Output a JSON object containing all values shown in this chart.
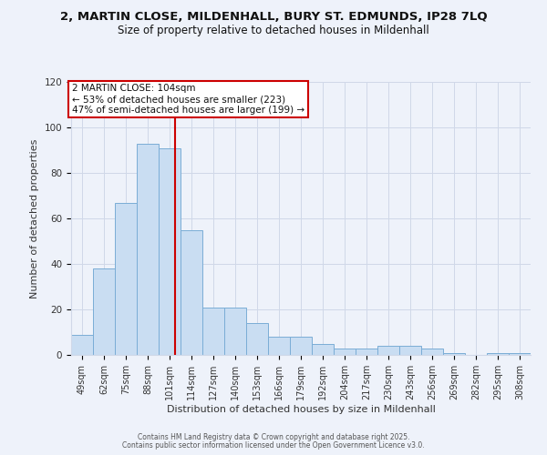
{
  "title_line1": "2, MARTIN CLOSE, MILDENHALL, BURY ST. EDMUNDS, IP28 7LQ",
  "title_line2": "Size of property relative to detached houses in Mildenhall",
  "xlabel": "Distribution of detached houses by size in Mildenhall",
  "ylabel": "Number of detached properties",
  "categories": [
    "49sqm",
    "62sqm",
    "75sqm",
    "88sqm",
    "101sqm",
    "114sqm",
    "127sqm",
    "140sqm",
    "153sqm",
    "166sqm",
    "179sqm",
    "192sqm",
    "204sqm",
    "217sqm",
    "230sqm",
    "243sqm",
    "256sqm",
    "269sqm",
    "282sqm",
    "295sqm",
    "308sqm"
  ],
  "values": [
    9,
    38,
    67,
    93,
    91,
    55,
    21,
    21,
    14,
    8,
    8,
    5,
    3,
    3,
    4,
    4,
    3,
    1,
    0,
    1,
    1
  ],
  "bar_color": "#c9ddf2",
  "bar_edge_color": "#7aadd6",
  "red_line_color": "#cc0000",
  "annotation_box_color": "#ffffff",
  "annotation_box_edge": "#cc0000",
  "annotation_line1": "2 MARTIN CLOSE: 104sqm",
  "annotation_line2": "← 53% of detached houses are smaller (223)",
  "annotation_line3": "47% of semi-detached houses are larger (199) →",
  "ylim": [
    0,
    120
  ],
  "yticks": [
    0,
    20,
    40,
    60,
    80,
    100,
    120
  ],
  "footer_line1": "Contains HM Land Registry data © Crown copyright and database right 2025.",
  "footer_line2": "Contains public sector information licensed under the Open Government Licence v3.0.",
  "background_color": "#eef2fa",
  "plot_background": "#eef2fa",
  "grid_color": "#d0d8e8",
  "title1_fontsize": 9.5,
  "title2_fontsize": 8.5,
  "ylabel_fontsize": 8,
  "xlabel_fontsize": 8,
  "tick_fontsize": 7,
  "footer_fontsize": 5.5,
  "annotation_fontsize": 7.5
}
